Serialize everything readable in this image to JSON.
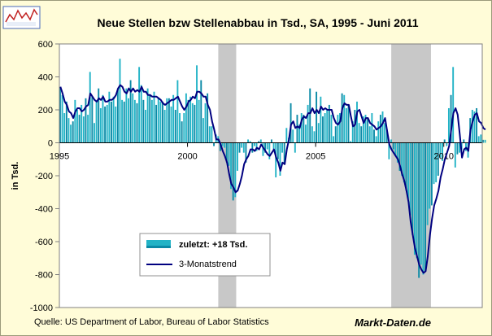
{
  "chart_data": {
    "type": "bar",
    "title": "Neue Stellen bzw Stellenabbau in Tsd., SA, 1995 - Juni 2011",
    "ylabel": "in Tsd.",
    "xlabel": "",
    "ylim": [
      -1000,
      600
    ],
    "xlim": [
      1995.0,
      2011.5
    ],
    "yticks": [
      600,
      400,
      200,
      0,
      -200,
      -400,
      -600,
      -800,
      -1000
    ],
    "xticks": [
      1995,
      2000,
      2005,
      2010
    ],
    "grid": false,
    "legend_position": "lower-left inside plot",
    "recession_bands": [
      [
        2001.2,
        2001.9
      ],
      [
        2007.95,
        2009.5
      ]
    ],
    "colors": {
      "background": "#fffcd8",
      "plot": "#ffffff",
      "bar": "#22b3c6",
      "bar_dark": "#0b8aa6",
      "trend": "#000080",
      "recession": "#c8c8c8",
      "axis": "#808080"
    },
    "series": [
      {
        "name": "zuletzt: +18 Tsd.",
        "type": "bar",
        "x_start": 1995.0,
        "step": 0.0833333,
        "values": [
          340,
          290,
          180,
          250,
          150,
          110,
          130,
          260,
          200,
          170,
          230,
          160,
          270,
          170,
          430,
          280,
          120,
          250,
          330,
          210,
          290,
          220,
          230,
          310,
          250,
          280,
          220,
          330,
          510,
          260,
          250,
          330,
          270,
          380,
          300,
          260,
          240,
          460,
          350,
          260,
          200,
          330,
          290,
          260,
          310,
          230,
          270,
          250,
          250,
          200,
          270,
          270,
          220,
          290,
          200,
          380,
          180,
          130,
          180,
          300,
          260,
          280,
          240,
          230,
          470,
          260,
          380,
          150,
          240,
          300,
          100,
          100,
          -20,
          50,
          40,
          -50,
          -20,
          -30,
          -120,
          -140,
          -280,
          -350,
          -330,
          -170,
          -60,
          -30,
          -60,
          -120,
          20,
          10,
          -60,
          -20,
          -50,
          10,
          20,
          -80,
          -60,
          -40,
          -100,
          20,
          -40,
          -210,
          -100,
          -200,
          -60,
          -130,
          90,
          30,
          240,
          80,
          -60,
          170,
          110,
          180,
          170,
          110,
          230,
          330,
          100,
          70,
          310,
          120,
          280,
          160,
          180,
          200,
          230,
          170,
          40,
          100,
          170,
          180,
          300,
          290,
          210,
          230,
          10,
          130,
          200,
          250,
          120,
          100,
          160,
          170,
          150,
          100,
          180,
          80,
          40,
          130,
          170,
          190,
          120,
          80,
          -100,
          20,
          -40,
          -80,
          -120,
          -170,
          -200,
          -240,
          -290,
          -340,
          -440,
          -560,
          -680,
          -700,
          -820,
          -740,
          -800,
          -780,
          -500,
          -400,
          -380,
          -250,
          -240,
          -200,
          -90,
          -110,
          20,
          -20,
          210,
          290,
          460,
          -150,
          -70,
          -60,
          -40,
          20,
          -50,
          -90,
          150,
          200,
          190,
          210,
          40,
          50,
          18,
          18
        ]
      },
      {
        "name": "3-Monatstrend",
        "type": "line",
        "x_start": 1995.0,
        "step": 0.0833333,
        "values": [
          340,
          300,
          250,
          230,
          190,
          180,
          150,
          190,
          210,
          210,
          190,
          200,
          220,
          230,
          300,
          280,
          260,
          250,
          270,
          260,
          280,
          250,
          250,
          260,
          260,
          270,
          290,
          330,
          350,
          340,
          310,
          300,
          330,
          310,
          330,
          310,
          320,
          310,
          340,
          310,
          310,
          290,
          290,
          280,
          280,
          280,
          270,
          260,
          240,
          230,
          240,
          250,
          260,
          260,
          270,
          280,
          250,
          220,
          200,
          220,
          250,
          260,
          280,
          270,
          310,
          310,
          300,
          280,
          280,
          230,
          200,
          130,
          80,
          20,
          20,
          -10,
          -50,
          -80,
          -120,
          -190,
          -250,
          -270,
          -300,
          -290,
          -250,
          -200,
          -130,
          -100,
          -80,
          -40,
          -40,
          -50,
          -30,
          -40,
          -10,
          -30,
          -50,
          -70,
          -80,
          -60,
          -40,
          -90,
          -120,
          -170,
          -120,
          -130,
          -40,
          20,
          110,
          130,
          90,
          100,
          90,
          140,
          160,
          150,
          180,
          180,
          210,
          180,
          200,
          180,
          220,
          200,
          210,
          200,
          200,
          200,
          150,
          120,
          110,
          130,
          210,
          240,
          230,
          230,
          160,
          100,
          110,
          190,
          200,
          160,
          120,
          150,
          150,
          120,
          110,
          100,
          80,
          90,
          100,
          120,
          150,
          70,
          -10,
          -40,
          -60,
          -80,
          -100,
          -140,
          -190,
          -230,
          -290,
          -360,
          -480,
          -560,
          -640,
          -690,
          -740,
          -770,
          -790,
          -780,
          -690,
          -560,
          -460,
          -380,
          -340,
          -290,
          -210,
          -160,
          -100,
          -60,
          -20,
          80,
          180,
          210,
          170,
          50,
          -90,
          -40,
          -30,
          -50,
          80,
          130,
          170,
          180,
          130,
          120,
          90,
          80
        ]
      }
    ]
  },
  "source_note": "Quelle: US Department of Labor, Bureau of Labor Statistics",
  "brand": "Markt-Daten.de"
}
